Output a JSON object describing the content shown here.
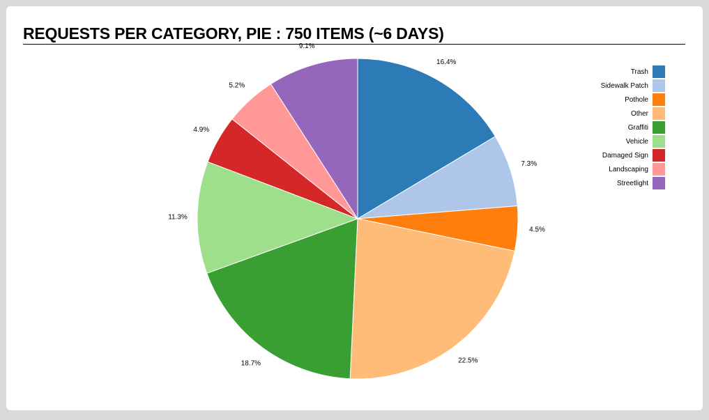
{
  "chart_data": {
    "type": "pie",
    "title": "REQUESTS PER CATEGORY, PIE : 750 ITEMS (~6 DAYS)",
    "categories": [
      "Trash",
      "Sidewalk Patch",
      "Pothole",
      "Other",
      "Graffiti",
      "Vehicle",
      "Damaged Sign",
      "Landscaping",
      "Streetlight"
    ],
    "values": [
      16.4,
      7.3,
      4.5,
      22.5,
      18.7,
      11.3,
      4.9,
      5.2,
      9.1
    ],
    "labels": [
      "16.4%",
      "7.3%",
      "4.5%",
      "22.5%",
      "18.7%",
      "11.3%",
      "4.9%",
      "5.2%",
      "9.1%"
    ],
    "colors": [
      "#2c7bb6",
      "#aec7e8",
      "#ff7f0e",
      "#ffbb78",
      "#3a9f33",
      "#9edf8c",
      "#d62728",
      "#ff9896",
      "#9467bd"
    ],
    "legend_position": "right"
  }
}
